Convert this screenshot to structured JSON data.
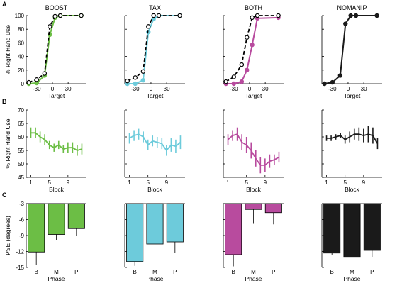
{
  "colors": {
    "BOOST": "#6cbe45",
    "TAX": "#6dcbdb",
    "BOTH": "#b84b9e",
    "NOMANIP": "#1a1a1a",
    "dashed": "#000000"
  },
  "panel_labels": [
    "A",
    "B",
    "C"
  ],
  "chart_data": [
    {
      "id": "A",
      "type": "line",
      "ylabel": "% Right Hand Use",
      "xlabel": "Target",
      "xlim": [
        -50,
        65
      ],
      "ylim": [
        0,
        100
      ],
      "xticks": [
        -30,
        0,
        30
      ],
      "yticks": [
        0,
        20,
        40,
        60,
        80,
        100
      ],
      "subplots": [
        {
          "title": "BOOST",
          "x": [
            -45,
            -30,
            -15,
            -5,
            5,
            15,
            55
          ],
          "series": [
            {
              "values": [
                0,
                1,
                12,
                72,
                97,
                100,
                100
              ]
            },
            {
              "values": [
                2,
                6,
                15,
                84,
                99,
                100,
                100
              ],
              "dashed": true
            }
          ]
        },
        {
          "title": "TAX",
          "x": [
            -45,
            -30,
            -15,
            -5,
            5,
            15,
            55
          ],
          "series": [
            {
              "values": [
                0,
                0,
                5,
                76,
                95,
                100,
                100
              ]
            },
            {
              "values": [
                4,
                9,
                18,
                84,
                100,
                100,
                100
              ],
              "dashed": true
            }
          ]
        },
        {
          "title": "BOTH",
          "x": [
            -45,
            -30,
            -15,
            -5,
            5,
            15,
            55
          ],
          "series": [
            {
              "values": [
                0,
                0,
                3,
                20,
                57,
                96,
                97
              ]
            },
            {
              "values": [
                3,
                10,
                28,
                68,
                97,
                100,
                100
              ],
              "dashed": true
            }
          ]
        },
        {
          "title": "NOMANIP",
          "x": [
            -45,
            -30,
            -15,
            -5,
            5,
            15,
            55
          ],
          "series": [
            {
              "values": [
                0,
                2,
                12,
                88,
                100,
                100,
                100
              ]
            }
          ]
        }
      ]
    },
    {
      "id": "B",
      "type": "line",
      "ylabel": "% Right Hand Use",
      "xlabel": "Block",
      "xlim": [
        0,
        13
      ],
      "ylim": [
        45,
        70
      ],
      "xticks": [
        1,
        5,
        9
      ],
      "yticks": [
        45,
        50,
        55,
        60,
        65,
        70
      ],
      "x": [
        1,
        2,
        3,
        4,
        5,
        6,
        7,
        8,
        9,
        10,
        11,
        12
      ],
      "subplots": [
        {
          "title": "BOOST",
          "values": [
            61.5,
            61.5,
            60,
            59,
            57,
            56,
            57,
            55.5,
            56,
            56,
            55,
            55.5
          ],
          "errors": [
            2,
            2,
            2,
            2,
            1.5,
            1.5,
            1.5,
            1.5,
            2,
            2,
            2,
            2
          ]
        },
        {
          "title": "TAX",
          "values": [
            59.5,
            60.5,
            61,
            60,
            57,
            58.5,
            58,
            57.5,
            55,
            57,
            56.5,
            58
          ],
          "errors": [
            2,
            2,
            2,
            2,
            2,
            2,
            2,
            2,
            2,
            2.5,
            2.5,
            2.5
          ]
        },
        {
          "title": "BOTH",
          "values": [
            59,
            60.5,
            61,
            58,
            57,
            55,
            52,
            49.5,
            49.5,
            51,
            51.5,
            52.5
          ],
          "errors": [
            2,
            2,
            2.5,
            3,
            3,
            3,
            3,
            3,
            2.5,
            2.5,
            2,
            2
          ]
        },
        {
          "title": "NOMANIP",
          "values": [
            59.5,
            59.5,
            60,
            60.5,
            59,
            60,
            61,
            61,
            60.5,
            61,
            60.5,
            57.5
          ],
          "errors": [
            1,
            1,
            1,
            1,
            1.5,
            2,
            2,
            2.5,
            2.5,
            3,
            3,
            2
          ]
        }
      ]
    },
    {
      "id": "C",
      "type": "bar",
      "ylabel": "PSE (degrees)",
      "xlabel": "Phase",
      "categories": [
        "B",
        "M",
        "P"
      ],
      "ylim": [
        -15,
        -3
      ],
      "yticks": [
        -3,
        -6,
        -9,
        -12,
        -15
      ],
      "subplots": [
        {
          "title": "BOOST",
          "values": [
            -12.1,
            -8.8,
            -7.7
          ],
          "errors": [
            2.5,
            1.0,
            1.3
          ]
        },
        {
          "title": "TAX",
          "values": [
            -13.9,
            -10.6,
            -10.2
          ],
          "errors": [
            0.8,
            1.6,
            2.1
          ]
        },
        {
          "title": "BOTH",
          "values": [
            -12.6,
            -4.1,
            -4.7
          ],
          "errors": [
            2.2,
            2.7,
            2.2
          ]
        },
        {
          "title": "NOMANIP",
          "values": [
            -12.3,
            -13.1,
            -11.8
          ],
          "errors": [
            0.3,
            1.4,
            1.2
          ]
        }
      ]
    }
  ]
}
